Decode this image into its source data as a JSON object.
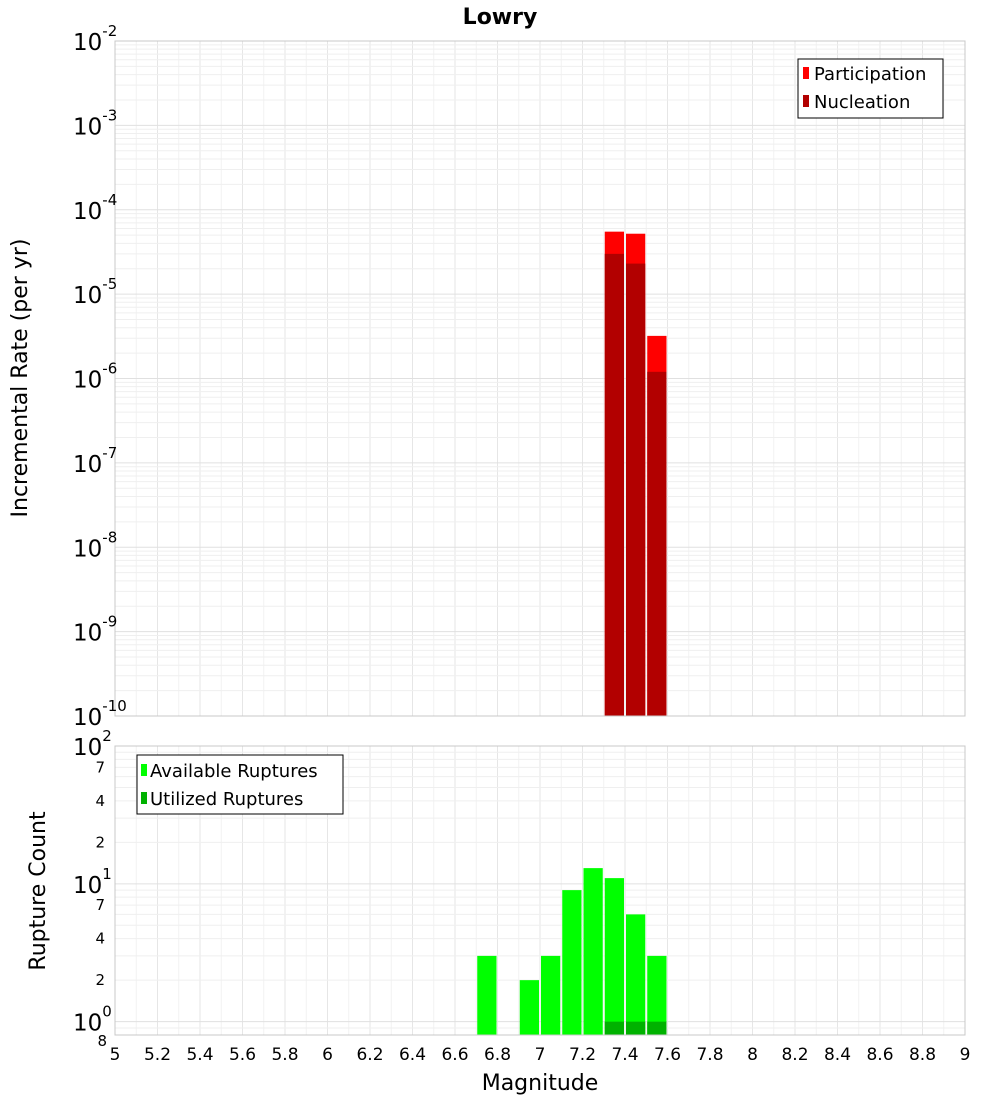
{
  "title": "Lowry",
  "chart_data": [
    {
      "type": "bar",
      "panel": "top",
      "ylabel": "Incremental Rate (per yr)",
      "y_scale": "log",
      "ylim": [
        1e-10,
        0.01
      ],
      "y_tick_labels": [
        {
          "value": 1e-10,
          "base": "10",
          "exp": "-10"
        },
        {
          "value": 1e-09,
          "base": "10",
          "exp": "-9"
        },
        {
          "value": 1e-08,
          "base": "10",
          "exp": "-8"
        },
        {
          "value": 1e-07,
          "base": "10",
          "exp": "-7"
        },
        {
          "value": 1e-06,
          "base": "10",
          "exp": "-6"
        },
        {
          "value": 1e-05,
          "base": "10",
          "exp": "-5"
        },
        {
          "value": 0.0001,
          "base": "10",
          "exp": "-4"
        },
        {
          "value": 0.001,
          "base": "10",
          "exp": "-3"
        },
        {
          "value": 0.01,
          "base": "10",
          "exp": "-2"
        }
      ],
      "bin_width": 0.1,
      "grid": true,
      "legend_position": "top-right",
      "series": [
        {
          "name": "Participation",
          "color": "#ff0000",
          "x": [
            7.35,
            7.45,
            7.55
          ],
          "values": [
            5.5e-05,
            5.2e-05,
            3.2e-06
          ]
        },
        {
          "name": "Nucleation",
          "color": "#b20000",
          "x": [
            7.35,
            7.45,
            7.55
          ],
          "values": [
            3e-05,
            2.3e-05,
            1.2e-06
          ]
        }
      ]
    },
    {
      "type": "bar",
      "panel": "bottom",
      "ylabel": "Rupture Count",
      "xlabel": "Magnitude",
      "y_scale": "log",
      "ylim": [
        0.8,
        100
      ],
      "y_tick_labels": [
        {
          "value": 1,
          "base": "10",
          "exp": "0"
        },
        {
          "value": 10,
          "base": "10",
          "exp": "1"
        },
        {
          "value": 100,
          "base": "10",
          "exp": "2"
        }
      ],
      "y_minor_labels": [
        {
          "value": 0.8,
          "label": "8"
        },
        {
          "value": 2,
          "label": "2"
        },
        {
          "value": 4,
          "label": "4"
        },
        {
          "value": 7,
          "label": "7"
        },
        {
          "value": 20,
          "label": "2"
        },
        {
          "value": 40,
          "label": "4"
        },
        {
          "value": 70,
          "label": "7"
        }
      ],
      "xlim": [
        5,
        9
      ],
      "x_ticks": [
        5,
        5.2,
        5.4,
        5.6,
        5.8,
        6,
        6.2,
        6.4,
        6.6,
        6.8,
        7,
        7.2,
        7.4,
        7.6,
        7.8,
        8,
        8.2,
        8.4,
        8.6,
        8.8,
        9
      ],
      "x_tick_labels": [
        "5",
        "5.2",
        "5.4",
        "5.6",
        "5.8",
        "6",
        "6.2",
        "6.4",
        "6.6",
        "6.8",
        "7",
        "7.2",
        "7.4",
        "7.6",
        "7.8",
        "8",
        "8.2",
        "8.4",
        "8.6",
        "8.8",
        "9"
      ],
      "bin_width": 0.1,
      "grid": true,
      "legend_position": "top-left",
      "series": [
        {
          "name": "Available Ruptures",
          "color": "#00ff00",
          "x": [
            6.75,
            6.95,
            7.05,
            7.15,
            7.25,
            7.35,
            7.45,
            7.55
          ],
          "values": [
            3,
            2,
            3,
            9,
            13,
            11,
            6,
            3
          ]
        },
        {
          "name": "Utilized Ruptures",
          "color": "#00b200",
          "x": [
            7.35,
            7.45,
            7.55
          ],
          "values": [
            1,
            1,
            1
          ]
        }
      ]
    }
  ]
}
